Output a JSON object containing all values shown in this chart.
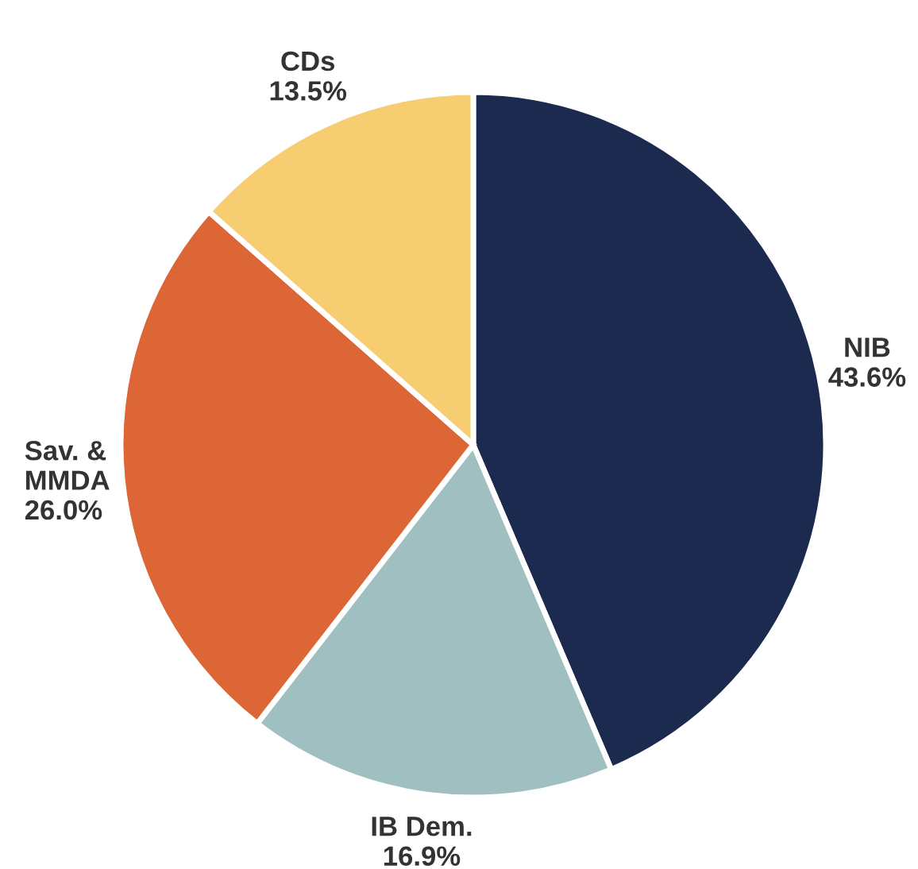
{
  "chart_data": {
    "type": "pie",
    "categories": [
      "NIB",
      "IB Dem.",
      "Sav. & MMDA",
      "CDs"
    ],
    "values": [
      43.6,
      16.9,
      26.0,
      13.5
    ],
    "colors": [
      "#1b2a4e",
      "#a0bfc0",
      "#dc6635",
      "#f7cd72"
    ],
    "value_labels": [
      "43.6%",
      "16.9%",
      "26.0%",
      "13.5%"
    ]
  }
}
